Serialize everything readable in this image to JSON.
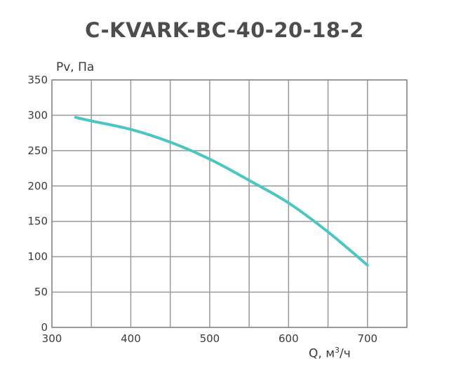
{
  "chart_data": {
    "type": "line",
    "title": "C-KVARK-BC-40-20-18-2",
    "ylabel": "Pv, Па",
    "xlabel": "Q, м",
    "xlabel_sup": "3",
    "xlabel_suffix": "/ч",
    "xlim": [
      300,
      750
    ],
    "ylim": [
      0,
      350
    ],
    "xticks": [
      300,
      400,
      500,
      600,
      700
    ],
    "yticks": [
      0,
      50,
      100,
      150,
      200,
      250,
      300,
      350
    ],
    "x_gridlines": [
      300,
      350,
      400,
      450,
      500,
      550,
      600,
      650,
      700,
      750
    ],
    "grid": true,
    "series": [
      {
        "color": "#4cc6c3",
        "x": [
          330,
          350,
          400,
          450,
          500,
          550,
          600,
          650,
          700
        ],
        "y": [
          297,
          292,
          280,
          262,
          238,
          208,
          176,
          135,
          88
        ]
      }
    ]
  }
}
